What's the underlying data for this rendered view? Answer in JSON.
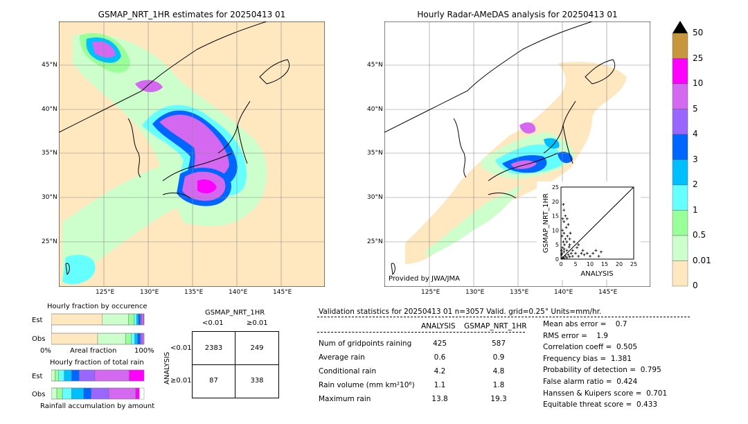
{
  "maps": {
    "left_title": "GSMAP_NRT_1HR estimates for 20250413 01",
    "right_title": "Hourly Radar-AMeDAS analysis for 20250413 01",
    "lat_labels": [
      "45°N",
      "40°N",
      "35°N",
      "30°N",
      "25°N"
    ],
    "lon_labels": [
      "125°E",
      "130°E",
      "135°E",
      "140°E",
      "145°E"
    ],
    "credit": "Provided by JWA/JMA"
  },
  "colorbar": {
    "labels": [
      "50",
      "25",
      "10",
      "5",
      "4",
      "3",
      "2",
      "1",
      "0.5",
      "0.01",
      "0"
    ],
    "colors": [
      "#c8963c",
      "#ff00ff",
      "#d468f0",
      "#9966ff",
      "#0066ff",
      "#00bfff",
      "#66ffff",
      "#99ff99",
      "#ccffcc",
      "#ffe8c0"
    ]
  },
  "scatter": {
    "xlabel": "ANALYSIS",
    "ylabel": "GSMAP_NRT_1HR",
    "ticks": [
      "0",
      "5",
      "10",
      "15",
      "20",
      "25"
    ]
  },
  "fraction": {
    "occurrence_title": "Hourly fraction by occurence",
    "total_title": "Hourly fraction of total rain",
    "accum_title": "Rainfall accumulation by amount",
    "est_label": "Est",
    "obs_label": "Obs",
    "axis_left": "0%",
    "axis_mid": "Areal fraction",
    "axis_right": "100%"
  },
  "contingency": {
    "header": "GSMAP_NRT_1HR",
    "col_lt": "<0.01",
    "col_ge": "≥0.01",
    "side": "ANALYSIS",
    "row_lt": "<0.01",
    "row_ge": "≥0.01",
    "cells": [
      "2383",
      "249",
      "87",
      "338"
    ]
  },
  "validation": {
    "header": "Validation statistics for 20250413 01  n=3057 Valid. grid=0.25° Units=mm/hr.",
    "col_analysis": "ANALYSIS",
    "col_gsmap": "GSMAP_NRT_1HR",
    "rows": [
      {
        "label": "Num of gridpoints raining",
        "a": "425",
        "g": "587"
      },
      {
        "label": "Average rain",
        "a": "0.6",
        "g": "0.9"
      },
      {
        "label": "Conditional rain",
        "a": "4.2",
        "g": "4.8"
      },
      {
        "label": "Rain volume (mm km²10⁶)",
        "a": "1.1",
        "g": "1.8"
      },
      {
        "label": "Maximum rain",
        "a": "13.8",
        "g": "19.3"
      }
    ],
    "scores": [
      "Mean abs error =    0.7",
      "RMS error =    1.9",
      "Correlation coeff =  0.505",
      "Frequency bias =  1.381",
      "Probability of detection =  0.795",
      "False alarm ratio =  0.424",
      "Hanssen & Kuipers score =  0.701",
      "Equitable threat score =  0.433"
    ]
  },
  "chart_data": {
    "type": "scatter",
    "xlabel": "ANALYSIS",
    "ylabel": "GSMAP_NRT_1HR",
    "xlim": [
      0,
      25
    ],
    "ylim": [
      0,
      25
    ],
    "points": [
      [
        0.5,
        0.5
      ],
      [
        1,
        0.3
      ],
      [
        1.5,
        1
      ],
      [
        2,
        0.5
      ],
      [
        0.3,
        2
      ],
      [
        1,
        2.5
      ],
      [
        2.5,
        1.5
      ],
      [
        3,
        0.8
      ],
      [
        0.5,
        4
      ],
      [
        1.2,
        5
      ],
      [
        2,
        3
      ],
      [
        3.5,
        2
      ],
      [
        4,
        1
      ],
      [
        0.8,
        6
      ],
      [
        1.5,
        7
      ],
      [
        2.2,
        8
      ],
      [
        1,
        9
      ],
      [
        0.5,
        10
      ],
      [
        1.8,
        11
      ],
      [
        2.5,
        12
      ],
      [
        1,
        13
      ],
      [
        0.6,
        14
      ],
      [
        1.5,
        15
      ],
      [
        1,
        17
      ],
      [
        0.8,
        19
      ],
      [
        3,
        5
      ],
      [
        4,
        3
      ],
      [
        5,
        2
      ],
      [
        5.5,
        4
      ],
      [
        6,
        1
      ],
      [
        7,
        2
      ],
      [
        7.5,
        3
      ],
      [
        8,
        1.5
      ],
      [
        9,
        2
      ],
      [
        10,
        1
      ],
      [
        11,
        2
      ],
      [
        12,
        3
      ],
      [
        13,
        1
      ],
      [
        13.8,
        2.5
      ],
      [
        4.5,
        6
      ],
      [
        3,
        7
      ],
      [
        2,
        6
      ],
      [
        6,
        5
      ],
      [
        0.2,
        1.5
      ],
      [
        0.2,
        3
      ],
      [
        0.4,
        8
      ],
      [
        1.1,
        3.5
      ],
      [
        2.8,
        4.2
      ],
      [
        3.2,
        9
      ],
      [
        2.1,
        14
      ]
    ],
    "occurrence": {
      "est": [
        {
          "c": "#ffe8c0",
          "w": 0.55
        },
        {
          "c": "#ccffcc",
          "w": 0.28
        },
        {
          "c": "#99ff99",
          "w": 0.06
        },
        {
          "c": "#66ffff",
          "w": 0.03
        },
        {
          "c": "#00bfff",
          "w": 0.02
        },
        {
          "c": "#0066ff",
          "w": 0.02
        },
        {
          "c": "#9966ff",
          "w": 0.015
        },
        {
          "c": "#d468f0",
          "w": 0.02
        },
        {
          "c": "#ff00ff",
          "w": 0.005
        }
      ],
      "obs": [
        {
          "c": "#ffe8c0",
          "w": 0.5
        },
        {
          "c": "#ccffcc",
          "w": 0.3
        },
        {
          "c": "#99ff99",
          "w": 0.06
        },
        {
          "c": "#66ffff",
          "w": 0.04
        },
        {
          "c": "#00bfff",
          "w": 0.03
        },
        {
          "c": "#0066ff",
          "w": 0.03
        },
        {
          "c": "#9966ff",
          "w": 0.02
        },
        {
          "c": "#d468f0",
          "w": 0.02
        }
      ]
    },
    "total": {
      "est": [
        {
          "c": "#ccffcc",
          "w": 0.04
        },
        {
          "c": "#99ff99",
          "w": 0.04
        },
        {
          "c": "#66ffff",
          "w": 0.06
        },
        {
          "c": "#00bfff",
          "w": 0.08
        },
        {
          "c": "#0066ff",
          "w": 0.08
        },
        {
          "c": "#9966ff",
          "w": 0.17
        },
        {
          "c": "#d468f0",
          "w": 0.37
        },
        {
          "c": "#ff00ff",
          "w": 0.16
        }
      ],
      "obs": [
        {
          "c": "#ccffcc",
          "w": 0.06
        },
        {
          "c": "#99ff99",
          "w": 0.06
        },
        {
          "c": "#66ffff",
          "w": 0.1
        },
        {
          "c": "#00bfff",
          "w": 0.13
        },
        {
          "c": "#0066ff",
          "w": 0.08
        },
        {
          "c": "#9966ff",
          "w": 0.19
        },
        {
          "c": "#d468f0",
          "w": 0.29
        },
        {
          "c": "#ff00ff",
          "w": 0.04
        }
      ]
    }
  }
}
